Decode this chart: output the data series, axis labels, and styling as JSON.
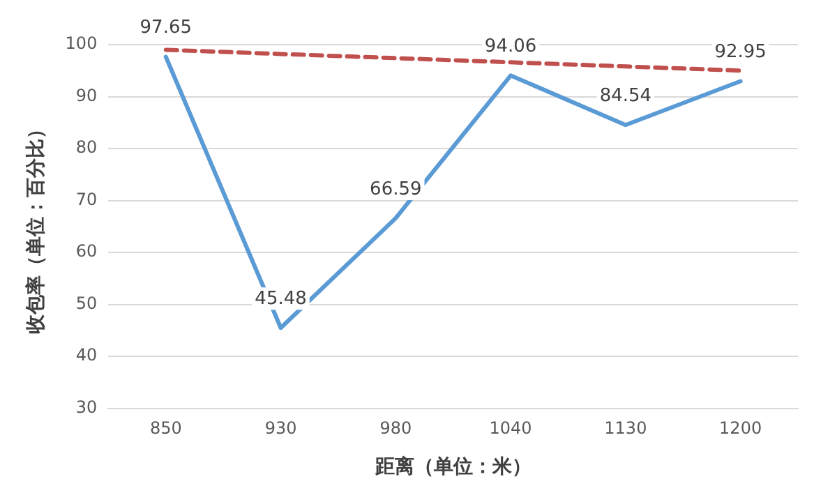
{
  "chart_data": {
    "type": "line",
    "xlabel": "距离（单位：米）",
    "ylabel": "收包率（单位：百分比）",
    "categories": [
      "850",
      "930",
      "980",
      "1040",
      "1130",
      "1200"
    ],
    "series": [
      {
        "color": "#5b9bd5",
        "values": [
          97.65,
          45.48,
          66.59,
          94.06,
          84.54,
          92.95
        ],
        "value_labels": [
          "97.65",
          "45.48",
          "66.59",
          "94.06",
          "84.54",
          "92.95"
        ]
      },
      {
        "color": "#c0504d",
        "values": [
          99.0,
          98.2,
          97.4,
          96.6,
          95.8,
          95.0
        ],
        "line_style": "dashed"
      }
    ],
    "ylim": [
      30,
      100
    ],
    "yticks": [
      30,
      40,
      50,
      60,
      70,
      80,
      90,
      100
    ],
    "grid": "y",
    "marker": "none"
  }
}
